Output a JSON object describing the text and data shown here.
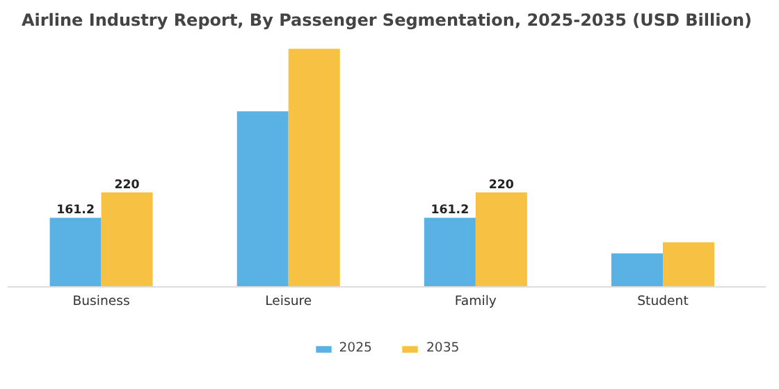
{
  "chart_data": {
    "type": "bar",
    "title": "Airline Industry Report, By Passenger Segmentation, 2025-2035 (USD Billion)",
    "categories": [
      "Business",
      "Leisure",
      "Family",
      "Student"
    ],
    "series": [
      {
        "name": "2025",
        "color": "#5ab1e4",
        "values": [
          161.2,
          409,
          161.2,
          78
        ],
        "value_labels": [
          "161.2",
          null,
          "161.2",
          null
        ]
      },
      {
        "name": "2035",
        "color": "#f7c143",
        "values": [
          220,
          555,
          220,
          104
        ],
        "value_labels": [
          "220",
          null,
          "220",
          null
        ]
      }
    ],
    "legend": "bottom"
  }
}
